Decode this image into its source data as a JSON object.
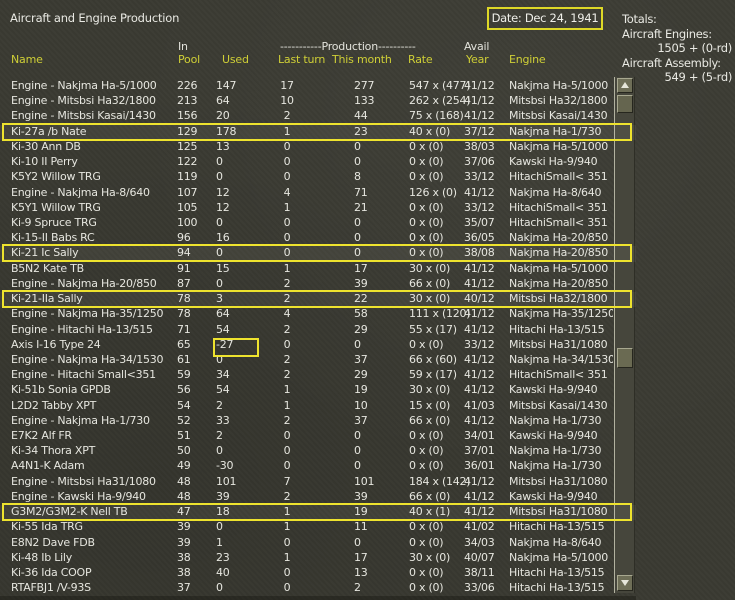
{
  "title": "Aircraft and Engine Production",
  "date": {
    "label": "Date: Dec 24, 1941"
  },
  "totals": {
    "heading": "Totals:",
    "engines_label": "Aircraft Engines:",
    "engines_value": "1505 + (0-rd)",
    "assembly_label": "Aircraft Assembly:",
    "assembly_value": "549 + (5-rd)"
  },
  "columns": {
    "name": "Name",
    "in_top": "In",
    "pool": "Pool",
    "used": "Used",
    "production_banner": "-----------Production----------",
    "last_turn": "Last turn",
    "this_month": "This month",
    "rate": "Rate",
    "avail_top": "Avail",
    "year": "Year",
    "engine": "Engine"
  },
  "colors": {
    "background": "#3b3b33",
    "header_yellow": "#cfcf36",
    "accent_yellow": "#eee32e",
    "text_white": "#e6e6df"
  },
  "rows": [
    {
      "name": "Engine - Nakjma Ha-5/1000",
      "pool": "226",
      "used": "147",
      "last_turn": "17",
      "this_month": "277",
      "rate": "547 x (477)",
      "avail": "41/12",
      "engine": "Nakjma Ha-5/1000",
      "hl": false,
      "box": false
    },
    {
      "name": "Engine - Mitsbsi Ha32/1800",
      "pool": "213",
      "used": "64",
      "last_turn": "10",
      "this_month": "133",
      "rate": "262 x (254)",
      "avail": "41/12",
      "engine": "Mitsbsi Ha32/1800",
      "hl": false,
      "box": false
    },
    {
      "name": "Engine - Mitsbsi Kasai/1430",
      "pool": "156",
      "used": "20",
      "last_turn": "2",
      "this_month": "44",
      "rate": "75 x (168)",
      "avail": "41/12",
      "engine": "Mitsbsi Kasai/1430",
      "hl": false,
      "box": false
    },
    {
      "name": "Ki-27a /b Nate",
      "pool": "129",
      "used": "178",
      "last_turn": "1",
      "this_month": "23",
      "rate": "40 x (0)",
      "avail": "37/12",
      "engine": "Nakjma Ha-1/730",
      "hl": true,
      "box": false
    },
    {
      "name": "Ki-30 Ann DB",
      "pool": "125",
      "used": "13",
      "last_turn": "0",
      "this_month": "0",
      "rate": "0 x (0)",
      "avail": "38/03",
      "engine": "Nakjma Ha-5/1000",
      "hl": false,
      "box": false
    },
    {
      "name": "Ki-10 II Perry",
      "pool": "122",
      "used": "0",
      "last_turn": "0",
      "this_month": "0",
      "rate": "0 x (0)",
      "avail": "37/06",
      "engine": "Kawski Ha-9/940",
      "hl": false,
      "box": false
    },
    {
      "name": "K5Y2 Willow TRG",
      "pool": "119",
      "used": "0",
      "last_turn": "0",
      "this_month": "8",
      "rate": "0 x (0)",
      "avail": "33/12",
      "engine": "HitachiSmall< 351",
      "hl": false,
      "box": false
    },
    {
      "name": "Engine - Nakjma Ha-8/640",
      "pool": "107",
      "used": "12",
      "last_turn": "4",
      "this_month": "71",
      "rate": "126 x (0)",
      "avail": "41/12",
      "engine": "Nakjma Ha-8/640",
      "hl": false,
      "box": false
    },
    {
      "name": "K5Y1 Willow TRG",
      "pool": "105",
      "used": "12",
      "last_turn": "1",
      "this_month": "21",
      "rate": "0 x (0)",
      "avail": "33/12",
      "engine": "HitachiSmall< 351",
      "hl": false,
      "box": false
    },
    {
      "name": "Ki-9 Spruce TRG",
      "pool": "100",
      "used": "0",
      "last_turn": "0",
      "this_month": "0",
      "rate": "0 x (0)",
      "avail": "35/07",
      "engine": "HitachiSmall< 351",
      "hl": false,
      "box": false
    },
    {
      "name": "Ki-15-II Babs RC",
      "pool": "96",
      "used": "16",
      "last_turn": "0",
      "this_month": "0",
      "rate": "0 x (0)",
      "avail": "36/05",
      "engine": "Nakjma Ha-20/850",
      "hl": false,
      "box": false
    },
    {
      "name": "Ki-21 Ic Sally",
      "pool": "94",
      "used": "0",
      "last_turn": "0",
      "this_month": "0",
      "rate": "0 x (0)",
      "avail": "38/08",
      "engine": "Nakjma Ha-20/850",
      "hl": true,
      "box": false
    },
    {
      "name": "B5N2 Kate TB",
      "pool": "91",
      "used": "15",
      "last_turn": "1",
      "this_month": "17",
      "rate": "30 x (0)",
      "avail": "41/12",
      "engine": "Nakjma Ha-5/1000",
      "hl": false,
      "box": false
    },
    {
      "name": "Engine - Nakjma Ha-20/850",
      "pool": "87",
      "used": "0",
      "last_turn": "2",
      "this_month": "39",
      "rate": "66 x (0)",
      "avail": "41/12",
      "engine": "Nakjma Ha-20/850",
      "hl": false,
      "box": false
    },
    {
      "name": "Ki-21-IIa Sally",
      "pool": "78",
      "used": "3",
      "last_turn": "2",
      "this_month": "22",
      "rate": "30 x (0)",
      "avail": "40/12",
      "engine": "Mitsbsi Ha32/1800",
      "hl": true,
      "box": false
    },
    {
      "name": "Engine - Nakjma Ha-35/1250",
      "pool": "78",
      "used": "64",
      "last_turn": "4",
      "this_month": "58",
      "rate": "111 x (120)",
      "avail": "41/12",
      "engine": "Nakjma Ha-35/1250",
      "hl": false,
      "box": false
    },
    {
      "name": "Engine - Hitachi Ha-13/515",
      "pool": "71",
      "used": "54",
      "last_turn": "2",
      "this_month": "29",
      "rate": "55 x (17)",
      "avail": "41/12",
      "engine": "Hitachi Ha-13/515",
      "hl": false,
      "box": false
    },
    {
      "name": "Axis I-16 Type 24",
      "pool": "65",
      "used": "-27",
      "last_turn": "0",
      "this_month": "0",
      "rate": "0 x (0)",
      "avail": "33/12",
      "engine": "Mitsbsi Ha31/1080",
      "hl": false,
      "box": true
    },
    {
      "name": "Engine - Nakjma Ha-34/1530",
      "pool": "61",
      "used": "0",
      "last_turn": "2",
      "this_month": "37",
      "rate": "66 x (60)",
      "avail": "41/12",
      "engine": "Nakjma Ha-34/1530",
      "hl": false,
      "box": false
    },
    {
      "name": "Engine - Hitachi Small<351",
      "pool": "59",
      "used": "34",
      "last_turn": "2",
      "this_month": "29",
      "rate": "59 x (17)",
      "avail": "41/12",
      "engine": "HitachiSmall< 351",
      "hl": false,
      "box": false
    },
    {
      "name": "Ki-51b Sonia GPDB",
      "pool": "56",
      "used": "54",
      "last_turn": "1",
      "this_month": "19",
      "rate": "30 x (0)",
      "avail": "41/12",
      "engine": "Kawski Ha-9/940",
      "hl": false,
      "box": false
    },
    {
      "name": "L2D2 Tabby XPT",
      "pool": "54",
      "used": "2",
      "last_turn": "1",
      "this_month": "10",
      "rate": "15 x (0)",
      "avail": "41/03",
      "engine": "Mitsbsi Kasai/1430",
      "hl": false,
      "box": false
    },
    {
      "name": "Engine - Nakjma Ha-1/730",
      "pool": "52",
      "used": "33",
      "last_turn": "2",
      "this_month": "37",
      "rate": "66 x (0)",
      "avail": "41/12",
      "engine": "Nakjma Ha-1/730",
      "hl": false,
      "box": false
    },
    {
      "name": "E7K2 Alf FR",
      "pool": "51",
      "used": "2",
      "last_turn": "0",
      "this_month": "0",
      "rate": "0 x (0)",
      "avail": "34/01",
      "engine": "Kawski Ha-9/940",
      "hl": false,
      "box": false
    },
    {
      "name": "Ki-34 Thora XPT",
      "pool": "50",
      "used": "0",
      "last_turn": "0",
      "this_month": "0",
      "rate": "0 x (0)",
      "avail": "37/01",
      "engine": "Nakjma Ha-1/730",
      "hl": false,
      "box": false
    },
    {
      "name": "A4N1-K Adam",
      "pool": "49",
      "used": "-30",
      "last_turn": "0",
      "this_month": "0",
      "rate": "0 x (0)",
      "avail": "36/01",
      "engine": "Nakjma Ha-1/730",
      "hl": false,
      "box": false
    },
    {
      "name": "Engine - Mitsbsi Ha31/1080",
      "pool": "48",
      "used": "101",
      "last_turn": "7",
      "this_month": "101",
      "rate": "184 x (142)",
      "avail": "41/12",
      "engine": "Mitsbsi Ha31/1080",
      "hl": false,
      "box": false
    },
    {
      "name": "Engine - Kawski Ha-9/940",
      "pool": "48",
      "used": "39",
      "last_turn": "2",
      "this_month": "39",
      "rate": "66 x (0)",
      "avail": "41/12",
      "engine": "Kawski Ha-9/940",
      "hl": false,
      "box": false
    },
    {
      "name": "G3M2/G3M2-K Nell TB",
      "pool": "47",
      "used": "18",
      "last_turn": "1",
      "this_month": "19",
      "rate": "40 x (1)",
      "avail": "41/12",
      "engine": "Mitsbsi Ha31/1080",
      "hl": true,
      "box": false
    },
    {
      "name": "Ki-55 Ida TRG",
      "pool": "39",
      "used": "0",
      "last_turn": "1",
      "this_month": "11",
      "rate": "0 x (0)",
      "avail": "41/02",
      "engine": "Hitachi Ha-13/515",
      "hl": false,
      "box": false
    },
    {
      "name": "E8N2 Dave FDB",
      "pool": "39",
      "used": "1",
      "last_turn": "0",
      "this_month": "0",
      "rate": "0 x (0)",
      "avail": "34/03",
      "engine": "Nakjma Ha-8/640",
      "hl": false,
      "box": false
    },
    {
      "name": "Ki-48 Ib Lily",
      "pool": "38",
      "used": "23",
      "last_turn": "1",
      "this_month": "17",
      "rate": "30 x (0)",
      "avail": "40/07",
      "engine": "Nakjma Ha-5/1000",
      "hl": false,
      "box": false
    },
    {
      "name": "Ki-36 Ida COOP",
      "pool": "38",
      "used": "40",
      "last_turn": "0",
      "this_month": "13",
      "rate": "0 x (0)",
      "avail": "38/11",
      "engine": "Hitachi Ha-13/515",
      "hl": false,
      "box": false
    },
    {
      "name": "RTAFBJ1 /V-93S",
      "pool": "37",
      "used": "0",
      "last_turn": "0",
      "this_month": "2",
      "rate": "0 x (0)",
      "avail": "33/06",
      "engine": "Hitachi Ha-13/515",
      "hl": false,
      "box": false
    }
  ]
}
